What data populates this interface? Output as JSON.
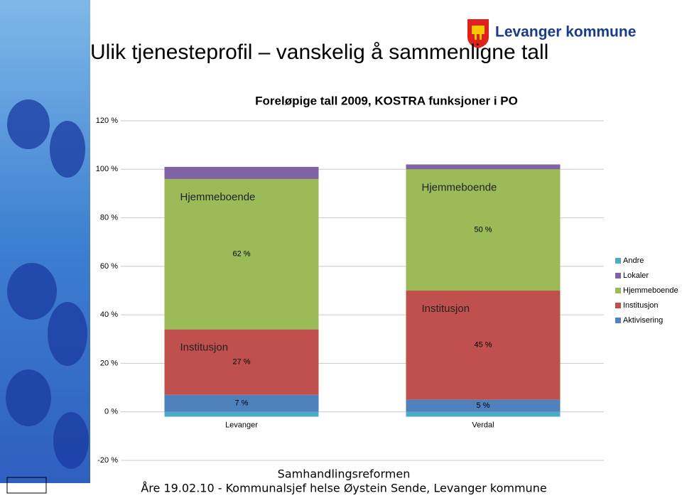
{
  "slide": {
    "title": "Ulik tjenesteprofil – vanskelig å sammenligne tall",
    "logo_text": "Levanger kommune",
    "footer": [
      "Samhandlingsreformen",
      "Åre 19.02.10 - Kommunalsjef helse Øystein Sende, Levanger kommune"
    ]
  },
  "chart_data": {
    "type": "stacked_bar",
    "title": "Foreløpige tall 2009, KOSTRA funksjoner i PO",
    "categories": [
      "Levanger",
      "Verdal"
    ],
    "series": [
      {
        "name": "Aktivisering",
        "color": "#4f81bd",
        "values": [
          7,
          5
        ],
        "value_labels": [
          "7 %",
          "5 %"
        ]
      },
      {
        "name": "Institusjon",
        "color": "#c0504d",
        "values": [
          27,
          45
        ],
        "value_labels": [
          "27 %",
          "45 %"
        ]
      },
      {
        "name": "Hjemmeboende",
        "color": "#9bbb59",
        "values": [
          62,
          50
        ],
        "value_labels": [
          "62 %",
          "50 %"
        ]
      },
      {
        "name": "Lokaler",
        "color": "#8064a2",
        "values": [
          5,
          2
        ]
      },
      {
        "name": "Andre",
        "color": "#4bacc6",
        "values": [
          -2,
          -2
        ]
      }
    ],
    "annotations": [
      [
        "Hjemmeboende",
        "Institusjon"
      ],
      [
        "Hjemmeboende",
        "Institusjon"
      ]
    ],
    "ylim": [
      -20,
      120
    ],
    "yticks": [
      {
        "value": -20,
        "label": "-20 %"
      },
      {
        "value": 0,
        "label": "0 %"
      },
      {
        "value": 20,
        "label": "20 %"
      },
      {
        "value": 40,
        "label": "40 %"
      },
      {
        "value": 60,
        "label": "60 %"
      },
      {
        "value": 80,
        "label": "80 %"
      },
      {
        "value": 100,
        "label": "100 %"
      },
      {
        "value": 120,
        "label": "120 %"
      }
    ],
    "grid": true,
    "legend": "right"
  }
}
